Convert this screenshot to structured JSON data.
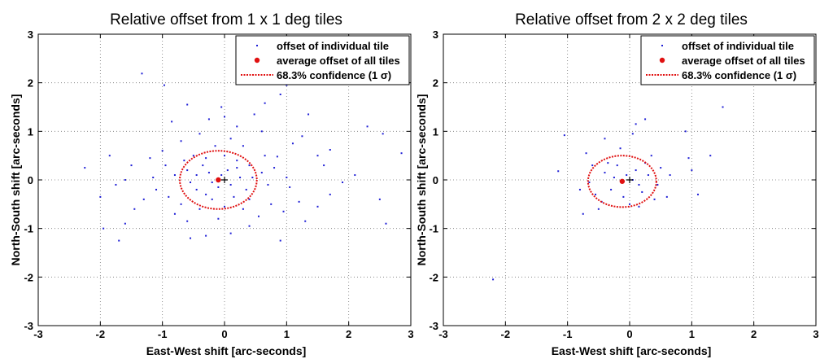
{
  "chart_data": [
    {
      "type": "scatter",
      "title": "Relative offset from 1 x 1 deg tiles",
      "xlabel": "East-West shift [arc-seconds]",
      "ylabel": "North-South shift [arc-seconds]",
      "xlim": [
        -3,
        3
      ],
      "ylim": [
        -3,
        3
      ],
      "xticks": [
        "-3",
        "-2",
        "-1",
        "0",
        "1",
        "2",
        "3"
      ],
      "yticks": [
        "-3",
        "-2",
        "-1",
        "0",
        "1",
        "2",
        "3"
      ],
      "grid": "dotted",
      "legend_position": "top-right",
      "legend": [
        "offset of individual tile",
        "average offset of all tiles",
        "68.3% confidence (1 σ)"
      ],
      "average": {
        "x": -0.1,
        "y": 0.0
      },
      "confidence_ellipse": {
        "cx": -0.1,
        "cy": 0.0,
        "rx": 0.62,
        "ry": 0.6
      },
      "colors": {
        "points": "#1f1fd6",
        "average": "#e01010",
        "ellipse": "#e01010"
      },
      "series": [
        {
          "name": "offset of individual tile",
          "points": [
            [
              -1.33,
              2.19
            ],
            [
              -0.97,
              1.95
            ],
            [
              -0.6,
              1.55
            ],
            [
              -0.05,
              1.5
            ],
            [
              0.65,
              1.58
            ],
            [
              0.9,
              1.76
            ],
            [
              1.0,
              1.95
            ],
            [
              0.48,
              1.35
            ],
            [
              -0.25,
              1.25
            ],
            [
              0.2,
              1.1
            ],
            [
              -0.85,
              1.2
            ],
            [
              1.35,
              1.35
            ],
            [
              2.3,
              1.1
            ],
            [
              2.55,
              0.95
            ],
            [
              2.85,
              0.55
            ],
            [
              1.25,
              0.9
            ],
            [
              1.1,
              0.75
            ],
            [
              1.5,
              0.5
            ],
            [
              1.7,
              0.62
            ],
            [
              0.85,
              0.48
            ],
            [
              -0.4,
              0.95
            ],
            [
              -0.7,
              0.8
            ],
            [
              -1.0,
              0.6
            ],
            [
              -1.2,
              0.45
            ],
            [
              -1.5,
              0.3
            ],
            [
              -2.25,
              0.25
            ],
            [
              -1.6,
              0.0
            ],
            [
              -1.75,
              -0.1
            ],
            [
              -1.6,
              -0.9
            ],
            [
              -1.95,
              -1.0
            ],
            [
              -1.7,
              -1.25
            ],
            [
              -0.55,
              -1.2
            ],
            [
              -0.3,
              -1.15
            ],
            [
              0.1,
              -1.1
            ],
            [
              0.9,
              -1.25
            ],
            [
              0.4,
              -0.95
            ],
            [
              1.3,
              -0.85
            ],
            [
              1.5,
              -0.55
            ],
            [
              1.7,
              -0.3
            ],
            [
              1.2,
              -0.45
            ],
            [
              2.6,
              -0.9
            ],
            [
              2.5,
              -0.4
            ],
            [
              -0.5,
              0.5
            ],
            [
              -0.3,
              0.45
            ],
            [
              0.0,
              0.5
            ],
            [
              0.2,
              0.4
            ],
            [
              0.4,
              0.3
            ],
            [
              -0.6,
              0.2
            ],
            [
              -0.8,
              0.1
            ],
            [
              -0.45,
              -0.2
            ],
            [
              -0.2,
              -0.4
            ],
            [
              0.15,
              -0.35
            ],
            [
              0.35,
              -0.2
            ],
            [
              0.45,
              0.05
            ],
            [
              -0.9,
              -0.35
            ],
            [
              -0.7,
              -0.5
            ],
            [
              -0.4,
              -0.6
            ],
            [
              0.0,
              -0.55
            ],
            [
              0.3,
              -0.6
            ],
            [
              -0.25,
              0.15
            ],
            [
              0.05,
              0.2
            ],
            [
              -0.1,
              -0.15
            ],
            [
              0.25,
              0.05
            ],
            [
              -0.55,
              -0.05
            ],
            [
              -0.35,
              0.3
            ],
            [
              0.6,
              0.15
            ],
            [
              0.7,
              -0.1
            ],
            [
              0.8,
              0.25
            ],
            [
              1.0,
              0.05
            ],
            [
              1.05,
              -0.15
            ],
            [
              -1.1,
              -0.2
            ],
            [
              -1.3,
              -0.4
            ],
            [
              -1.15,
              0.05
            ],
            [
              -0.95,
              0.3
            ],
            [
              -0.15,
              0.7
            ],
            [
              0.1,
              0.85
            ],
            [
              0.3,
              0.7
            ],
            [
              -0.6,
              -0.85
            ],
            [
              -0.1,
              -0.8
            ],
            [
              0.55,
              -0.75
            ],
            [
              -0.05,
              0.1
            ],
            [
              -0.2,
              -0.05
            ],
            [
              0.1,
              -0.1
            ],
            [
              -0.3,
              -0.3
            ],
            [
              0.2,
              0.25
            ],
            [
              -0.45,
              0.1
            ],
            [
              0.4,
              -0.4
            ],
            [
              -0.65,
              0.4
            ],
            [
              0.65,
              0.5
            ],
            [
              1.6,
              0.3
            ],
            [
              1.9,
              -0.05
            ],
            [
              2.1,
              0.1
            ],
            [
              -1.45,
              -0.6
            ],
            [
              -0.8,
              -0.7
            ],
            [
              0.75,
              -0.5
            ],
            [
              0.95,
              -0.65
            ],
            [
              -2.0,
              -0.35
            ],
            [
              -1.85,
              0.5
            ],
            [
              0.0,
              1.3
            ],
            [
              0.6,
              1.0
            ]
          ]
        }
      ]
    },
    {
      "type": "scatter",
      "title": "Relative offset from 2 x 2 deg tiles",
      "xlabel": "East-West shift [arc-seconds]",
      "ylabel": "North-South shift [arc-seconds]",
      "xlim": [
        -3,
        3
      ],
      "ylim": [
        -3,
        3
      ],
      "xticks": [
        "-3",
        "-2",
        "-1",
        "0",
        "1",
        "2",
        "3"
      ],
      "yticks": [
        "-3",
        "-2",
        "-1",
        "0",
        "1",
        "2",
        "3"
      ],
      "grid": "dotted",
      "legend_position": "top-right",
      "legend": [
        "offset of individual tile",
        "average offset of all tiles",
        "68.3% confidence (1 σ)"
      ],
      "average": {
        "x": -0.12,
        "y": -0.03
      },
      "confidence_ellipse": {
        "cx": -0.12,
        "cy": -0.03,
        "rx": 0.55,
        "ry": 0.53
      },
      "colors": {
        "points": "#1f1fd6",
        "average": "#e01010",
        "ellipse": "#e01010"
      },
      "series": [
        {
          "name": "offset of individual tile",
          "points": [
            [
              1.5,
              1.5
            ],
            [
              0.25,
              1.25
            ],
            [
              0.1,
              1.15
            ],
            [
              -0.4,
              0.85
            ],
            [
              0.9,
              1.0
            ],
            [
              1.3,
              0.5
            ],
            [
              0.95,
              0.45
            ],
            [
              1.0,
              0.2
            ],
            [
              0.05,
              0.95
            ],
            [
              -0.15,
              0.65
            ],
            [
              0.35,
              0.5
            ],
            [
              -1.05,
              0.92
            ],
            [
              -1.15,
              0.18
            ],
            [
              -0.8,
              -0.2
            ],
            [
              -0.75,
              -0.7
            ],
            [
              -0.5,
              -0.6
            ],
            [
              0.15,
              -0.55
            ],
            [
              0.4,
              -0.4
            ],
            [
              0.6,
              -0.35
            ],
            [
              1.1,
              -0.3
            ],
            [
              -0.6,
              0.3
            ],
            [
              -0.4,
              0.15
            ],
            [
              -0.2,
              0.3
            ],
            [
              0.1,
              0.2
            ],
            [
              0.3,
              0.1
            ],
            [
              -0.3,
              -0.2
            ],
            [
              -0.1,
              -0.35
            ],
            [
              0.2,
              -0.25
            ],
            [
              -0.45,
              -0.45
            ],
            [
              0.0,
              -0.5
            ],
            [
              0.5,
              0.25
            ],
            [
              0.45,
              -0.1
            ],
            [
              -0.65,
              -0.05
            ],
            [
              -0.25,
              0.05
            ],
            [
              0.05,
              0.0
            ],
            [
              -0.05,
              0.1
            ],
            [
              0.15,
              -0.1
            ],
            [
              -0.35,
              0.35
            ],
            [
              0.25,
              0.35
            ],
            [
              -0.55,
              -0.3
            ],
            [
              -2.2,
              -2.05
            ],
            [
              -0.7,
              0.55
            ],
            [
              0.65,
              0.1
            ]
          ]
        }
      ]
    }
  ]
}
